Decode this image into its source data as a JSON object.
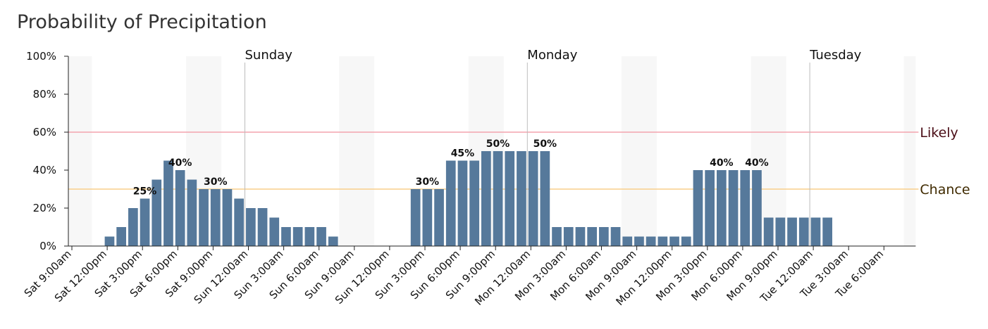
{
  "title": "Probability of Precipitation",
  "chart_data": {
    "type": "bar",
    "title": "Probability of Precipitation",
    "xlabel": "",
    "ylabel": "",
    "ylim": [
      0,
      100
    ],
    "y_ticks": [
      "0%",
      "20%",
      "40%",
      "60%",
      "80%",
      "100%"
    ],
    "x_tick_labels": [
      "Sat 9:00am",
      "Sat 12:00pm",
      "Sat 3:00pm",
      "Sat 6:00pm",
      "Sat 9:00pm",
      "Sun 12:00am",
      "Sun 3:00am",
      "Sun 6:00am",
      "Sun 9:00am",
      "Sun 12:00pm",
      "Sun 3:00pm",
      "Sun 6:00pm",
      "Sun 9:00pm",
      "Mon 12:00am",
      "Mon 3:00am",
      "Mon 6:00am",
      "Mon 9:00am",
      "Mon 12:00pm",
      "Mon 3:00pm",
      "Mon 6:00pm",
      "Mon 9:00pm",
      "Tue 12:00am",
      "Tue 3:00am",
      "Tue 6:00am"
    ],
    "x_start": "Sat 9:00am",
    "x_step_hours": 1,
    "values": [
      0,
      0,
      0,
      5,
      10,
      20,
      25,
      35,
      45,
      40,
      35,
      30,
      30,
      30,
      25,
      20,
      20,
      15,
      10,
      10,
      10,
      10,
      5,
      0,
      0,
      0,
      0,
      0,
      0,
      30,
      30,
      30,
      45,
      45,
      45,
      50,
      50,
      50,
      50,
      50,
      50,
      10,
      10,
      10,
      10,
      10,
      10,
      5,
      5,
      5,
      5,
      5,
      5,
      40,
      40,
      40,
      40,
      40,
      40,
      15,
      15,
      15,
      15,
      15,
      15,
      0,
      0,
      0,
      0,
      0,
      0,
      0
    ],
    "data_labels": [
      {
        "hour_index": 6,
        "text": "25%"
      },
      {
        "hour_index": 9,
        "text": "40%"
      },
      {
        "hour_index": 12,
        "text": "30%"
      },
      {
        "hour_index": 30,
        "text": "30%"
      },
      {
        "hour_index": 33,
        "text": "45%"
      },
      {
        "hour_index": 36,
        "text": "50%"
      },
      {
        "hour_index": 40,
        "text": "50%"
      },
      {
        "hour_index": 55,
        "text": "40%"
      },
      {
        "hour_index": 58,
        "text": "40%"
      }
    ],
    "day_markers": [
      {
        "label": "Sunday",
        "hour_index": 15
      },
      {
        "label": "Monday",
        "hour_index": 39
      },
      {
        "label": "Tuesday",
        "hour_index": 63
      }
    ],
    "thresholds": [
      {
        "label": "Likely",
        "value": 60,
        "line_color": "#f4a4ad",
        "text_color": "#4a0d16"
      },
      {
        "label": "Chance",
        "value": 30,
        "line_color": "#f8cf8c",
        "text_color": "#3f2a00"
      }
    ],
    "night_bands": [
      [
        0,
        2
      ],
      [
        10,
        13
      ],
      [
        23,
        26
      ],
      [
        34,
        37
      ],
      [
        47,
        50
      ],
      [
        58,
        61
      ],
      [
        71,
        72
      ]
    ],
    "bar_color": "#56799b",
    "band_color": "#f7f7f7",
    "grid": false
  }
}
